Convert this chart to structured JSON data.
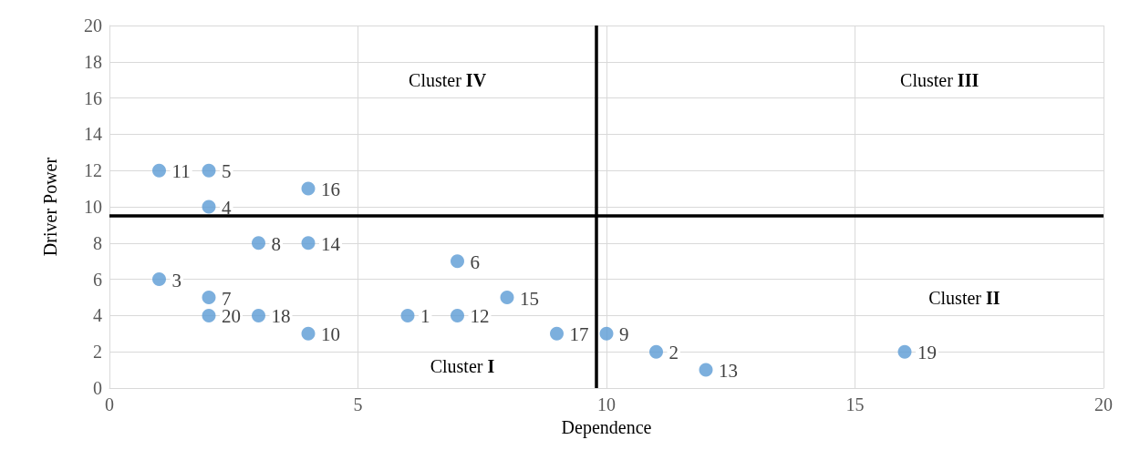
{
  "chart_data": {
    "type": "scatter",
    "xlabel": "Dependence",
    "ylabel": "Driver Power",
    "x": [
      6,
      11,
      1,
      2,
      2,
      7,
      2,
      3,
      10,
      4,
      1,
      7,
      12,
      4,
      8,
      4,
      9,
      3,
      16,
      2
    ],
    "values": [
      4,
      2,
      6,
      10,
      12,
      7,
      5,
      8,
      3,
      3,
      12,
      4,
      1,
      8,
      5,
      11,
      3,
      4,
      2,
      4
    ],
    "color": "#5b9bd5",
    "marker": "circle",
    "grid": true,
    "xlim": [
      0,
      20
    ],
    "xticks": [
      0,
      5,
      10,
      15,
      20
    ],
    "ylim": [
      0,
      20
    ],
    "yticks": [
      0,
      2,
      4,
      6,
      8,
      10,
      12,
      14,
      16,
      18,
      20
    ],
    "ref_lines": [
      {
        "axis": "x",
        "value": 9.8,
        "color": "#000000"
      },
      {
        "axis": "y",
        "value": 9.5,
        "color": "#000000"
      }
    ],
    "annotations": [
      {
        "text": "1",
        "x": 6,
        "y": 4
      },
      {
        "text": "2",
        "x": 11,
        "y": 2
      },
      {
        "text": "3",
        "x": 1,
        "y": 6
      },
      {
        "text": "4",
        "x": 2,
        "y": 10
      },
      {
        "text": "5",
        "x": 2,
        "y": 12
      },
      {
        "text": "6",
        "x": 7,
        "y": 7
      },
      {
        "text": "7",
        "x": 2,
        "y": 5
      },
      {
        "text": "8",
        "x": 3,
        "y": 8
      },
      {
        "text": "9",
        "x": 10,
        "y": 3
      },
      {
        "text": "10",
        "x": 4,
        "y": 3
      },
      {
        "text": "11",
        "x": 1,
        "y": 12
      },
      {
        "text": "12",
        "x": 7,
        "y": 4
      },
      {
        "text": "13",
        "x": 12,
        "y": 1
      },
      {
        "text": "14",
        "x": 4,
        "y": 8
      },
      {
        "text": "15",
        "x": 8,
        "y": 5
      },
      {
        "text": "16",
        "x": 4,
        "y": 11
      },
      {
        "text": "17",
        "x": 9,
        "y": 3
      },
      {
        "text": "18",
        "x": 3,
        "y": 4
      },
      {
        "text": "19",
        "x": 16,
        "y": 2
      },
      {
        "text": "20",
        "x": 2,
        "y": 4
      },
      "Cluster IV",
      "Cluster III",
      "Cluster I",
      "Cluster II"
    ]
  }
}
